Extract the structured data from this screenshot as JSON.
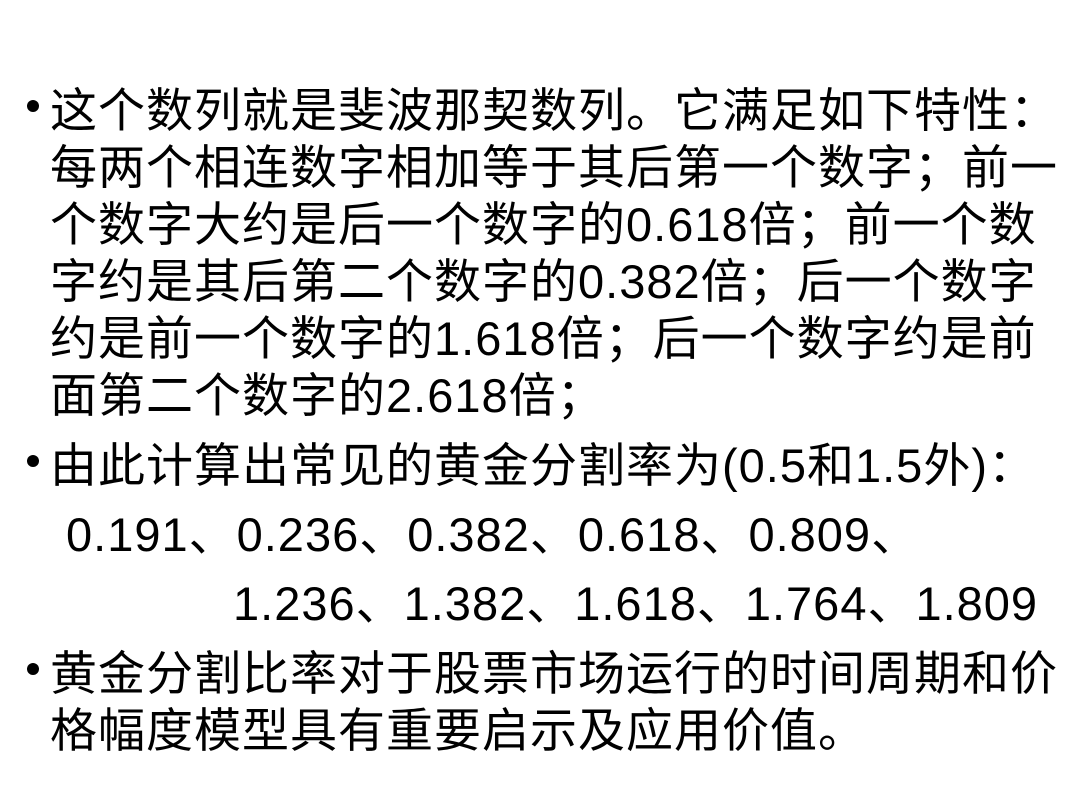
{
  "slide": {
    "background_color": "#ffffff",
    "text_color": "#000000",
    "bullets": [
      {
        "lines": [
          "这个数列就是斐波那契数列。它满足如下特性：",
          "每两个相连数字相加等于其后第一个数字；前一",
          "个数字大约是后一个数字的0.618倍；前一个数",
          "字约是其后第二个数字的0.382倍；后一个数字",
          "约是前一个数字的1.618倍；后一个数字约是前",
          "面第二个数字的2.618倍；"
        ]
      },
      {
        "lines": [
          "由此计算出常见的黄金分割率为(0.5和1.5外)：",
          "0.191、0.236、0.382、0.618、0.809、",
          "1.236、1.382、1.618、1.764、1.809"
        ]
      },
      {
        "lines": [
          "黄金分割比率对于股票市场运行的时间周期和价",
          "格幅度模型具有重要启示及应用价值。"
        ]
      }
    ]
  }
}
